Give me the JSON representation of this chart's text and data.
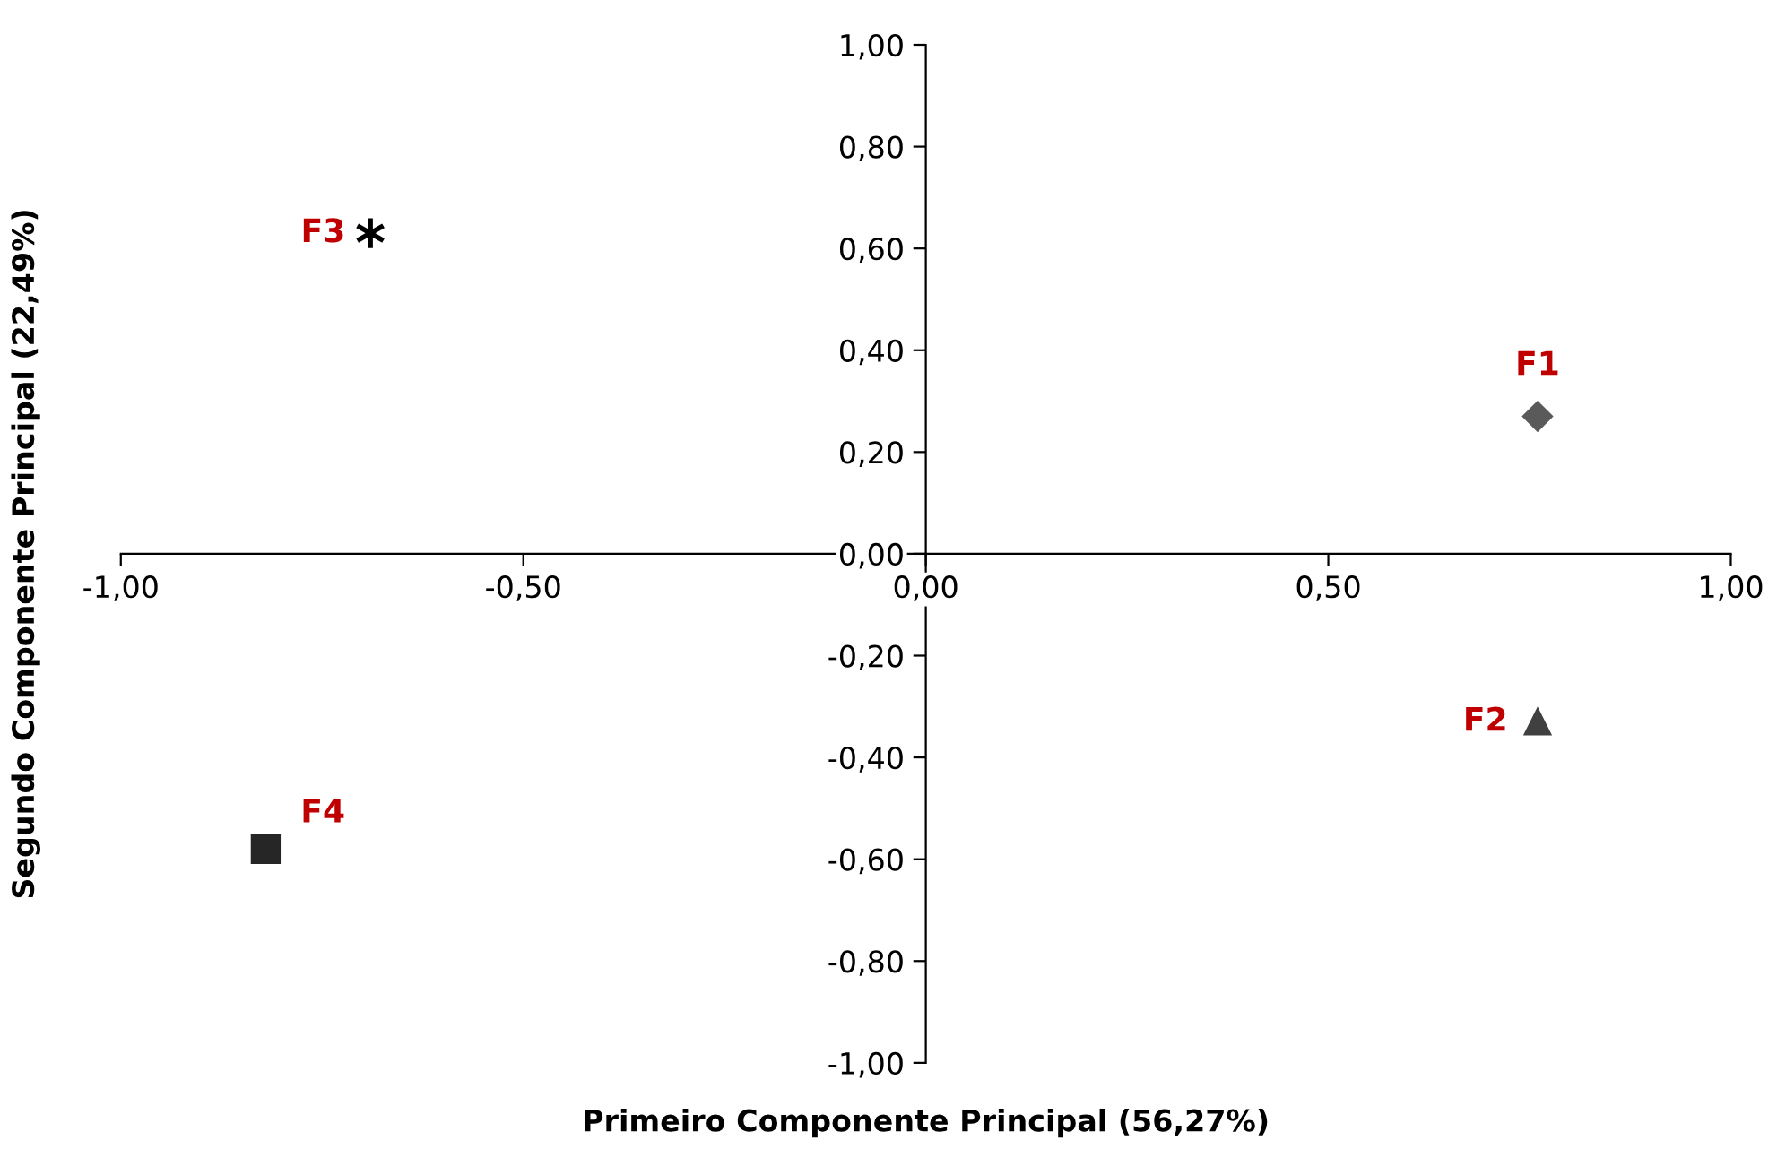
{
  "chart_data": {
    "type": "scatter",
    "xlabel": "Primeiro Componente Principal (56,27%)",
    "ylabel": "Segundo Componente Principal (22,49%)",
    "xlim": [
      -1,
      1
    ],
    "ylim": [
      -1,
      1
    ],
    "xticks": [
      {
        "value": -1,
        "label": "-1,00"
      },
      {
        "value": -0.5,
        "label": "-0,50"
      },
      {
        "value": 0,
        "label": "0,00"
      },
      {
        "value": 0.5,
        "label": "0,50"
      },
      {
        "value": 1,
        "label": "1,00"
      }
    ],
    "yticks": [
      {
        "value": -1,
        "label": "-1,00"
      },
      {
        "value": -0.8,
        "label": "-0,80"
      },
      {
        "value": -0.6,
        "label": "-0,60"
      },
      {
        "value": -0.4,
        "label": "-0,40"
      },
      {
        "value": -0.2,
        "label": "-0,20"
      },
      {
        "value": 0,
        "label": "0,00"
      },
      {
        "value": 0.2,
        "label": "0,20"
      },
      {
        "value": 0.4,
        "label": "0,40"
      },
      {
        "value": 0.6,
        "label": "0,60"
      },
      {
        "value": 0.8,
        "label": "0,80"
      },
      {
        "value": 1,
        "label": "1,00"
      }
    ],
    "grid": false,
    "legend": false,
    "series": [
      {
        "name": "F1",
        "color": "#5a5a5a",
        "marker": "diamond",
        "x": [
          0.76
        ],
        "values": [
          0.27
        ]
      },
      {
        "name": "F2",
        "color": "#404040",
        "marker": "triangle",
        "x": [
          0.76
        ],
        "values": [
          -0.33
        ]
      },
      {
        "name": "F3",
        "color": "#000000",
        "marker": "cross",
        "x": [
          -0.69
        ],
        "values": [
          0.63
        ]
      },
      {
        "name": "F4",
        "color": "#262626",
        "marker": "square",
        "x": [
          -0.82
        ],
        "values": [
          -0.58
        ]
      }
    ]
  }
}
